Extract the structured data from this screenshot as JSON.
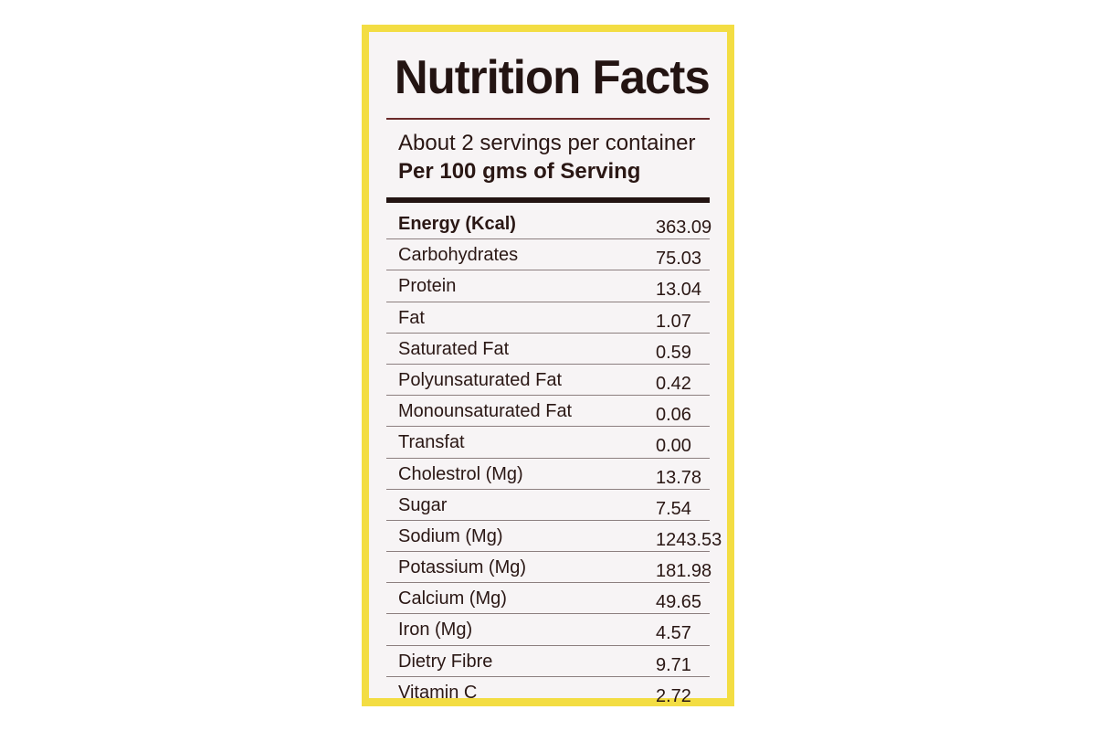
{
  "colors": {
    "border": "#f3dd43",
    "panel": "#f7f4f5",
    "text": "#2a1714",
    "rule": "#231412"
  },
  "label": {
    "title": "Nutrition Facts",
    "servings": "About 2 servings per container",
    "per_serving": "Per 100 gms of Serving",
    "rows": [
      {
        "name": "Energy (Kcal)",
        "value": "363.09"
      },
      {
        "name": "Carbohydrates",
        "value": "75.03"
      },
      {
        "name": "Protein",
        "value": "13.04"
      },
      {
        "name": "Fat",
        "value": "1.07"
      },
      {
        "name": "Saturated Fat",
        "value": "0.59"
      },
      {
        "name": "Polyunsaturated Fat",
        "value": "0.42"
      },
      {
        "name": "Monounsaturated Fat",
        "value": "0.06"
      },
      {
        "name": "Transfat",
        "value": "0.00"
      },
      {
        "name": "Cholestrol (Mg)",
        "value": "13.78"
      },
      {
        "name": "Sugar",
        "value": "7.54"
      },
      {
        "name": "Sodium (Mg)",
        "value": "1243.53"
      },
      {
        "name": "Potassium (Mg)",
        "value": "181.98"
      },
      {
        "name": "Calcium (Mg)",
        "value": "49.65"
      },
      {
        "name": "Iron (Mg)",
        "value": "4.57"
      },
      {
        "name": "Dietry Fibre",
        "value": "9.71"
      },
      {
        "name": "Vitamin C",
        "value": "2.72"
      }
    ]
  }
}
